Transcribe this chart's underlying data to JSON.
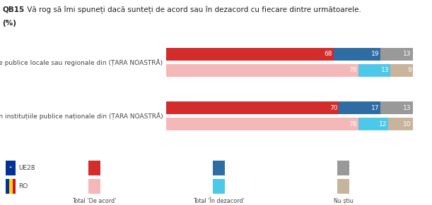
{
  "title_bold": "QB15",
  "title_text": " Vă rog să îmi spuneți dacă sunteți de acord sau în dezacord cu fiecare dintre următoarele.",
  "subtitle": "(%)",
  "questions": [
    {
      "label": "Există corupție în instituțiile publice locale sau regionale din (ȚARA NOASTRĂ)",
      "rows": [
        {
          "type": "UE28",
          "values": [
            68,
            19,
            13
          ],
          "colors": [
            "#d42b2b",
            "#2e6da4",
            "#999999"
          ]
        },
        {
          "type": "RO",
          "values": [
            78,
            13,
            9
          ],
          "colors": [
            "#f5b8b8",
            "#4dc8e8",
            "#c8b49a"
          ]
        }
      ]
    },
    {
      "label": "Există corupție în instituțiile publice naționale din (ȚARA NOASTRĂ)",
      "rows": [
        {
          "type": "UE28",
          "values": [
            70,
            17,
            13
          ],
          "colors": [
            "#d42b2b",
            "#2e6da4",
            "#999999"
          ]
        },
        {
          "type": "RO",
          "values": [
            78,
            12,
            10
          ],
          "colors": [
            "#f5b8b8",
            "#4dc8e8",
            "#c8b49a"
          ]
        }
      ]
    }
  ],
  "legend": {
    "UE28_color_accord": "#d42b2b",
    "UE28_color_dezacord": "#2e6da4",
    "UE28_color_nustiu": "#999999",
    "RO_color_accord": "#f5b8b8",
    "RO_color_dezacord": "#4dc8e8",
    "RO_color_nustiu": "#c8b49a",
    "labels": [
      "Total ‘De acord’",
      "Total ‘În dezacord’",
      "Nu știu"
    ]
  },
  "background_color": "#ffffff",
  "text_color": "#444444",
  "bar_label_fontsize": 6.5,
  "axis_label_fontsize": 6.5,
  "title_fontsize": 7.5,
  "legend_fontsize": 6.5
}
